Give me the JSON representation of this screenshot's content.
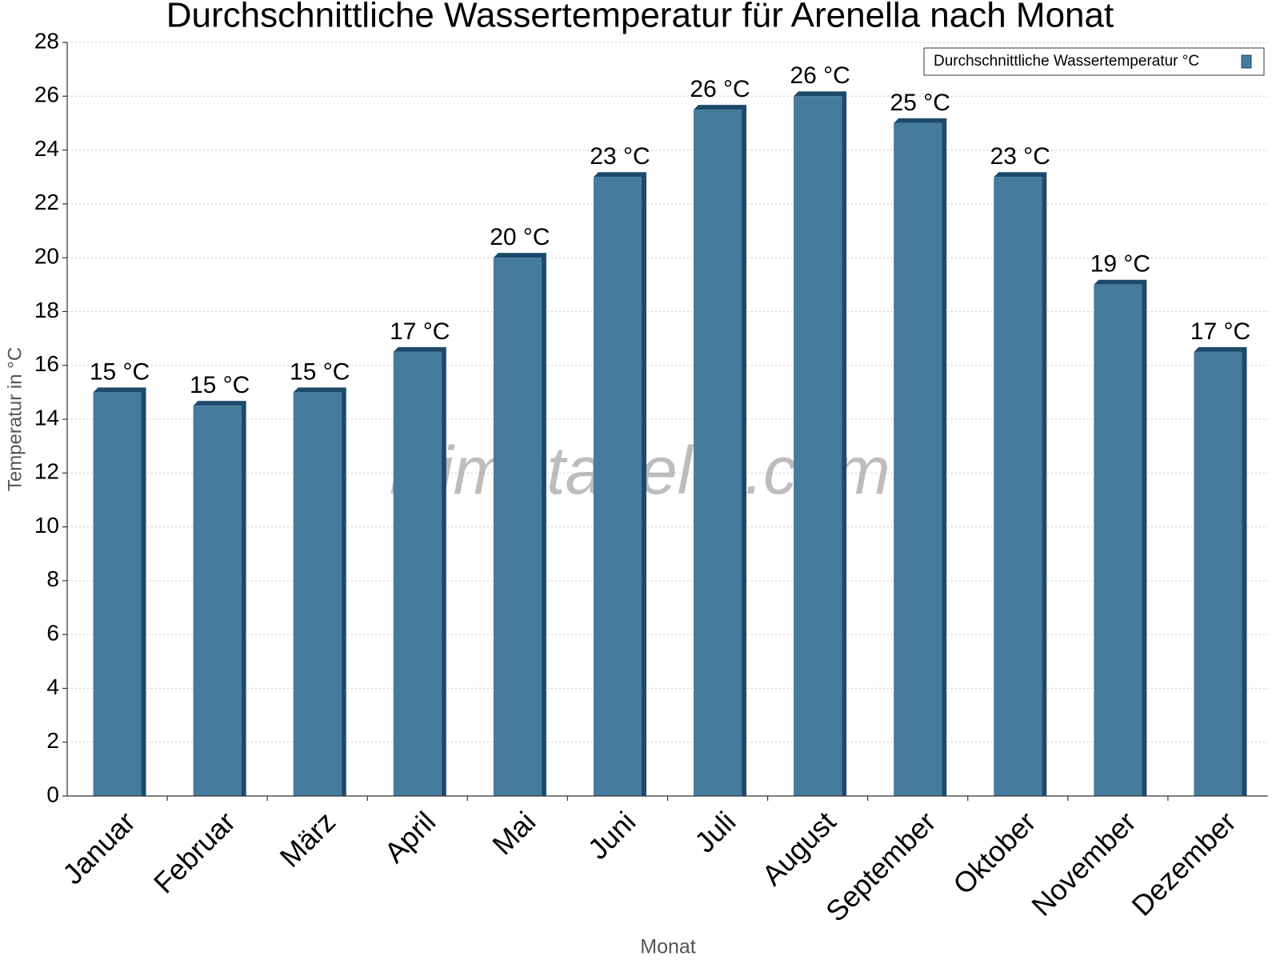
{
  "chart_data": {
    "type": "bar",
    "title": "Durchschnittliche Wassertemperatur für Arenella nach Monat",
    "watermark": "klimatabelle.com",
    "x_label": "Monat",
    "y_label": "Temperatur in °C",
    "categories": [
      "Januar",
      "Februar",
      "März",
      "April",
      "Mai",
      "Juni",
      "Juli",
      "August",
      "September",
      "Oktober",
      "November",
      "Dezember"
    ],
    "series": [
      {
        "name": "Durchschnittliche Wassertemperatur °C",
        "color": "#457b9d",
        "values": [
          15,
          14.5,
          15,
          16.5,
          20,
          23,
          25.5,
          26,
          25,
          23,
          19,
          16.5
        ],
        "value_labels": [
          "15 °C",
          "15 °C",
          "15 °C",
          "17 °C",
          "20 °C",
          "23 °C",
          "26 °C",
          "26 °C",
          "25 °C",
          "23 °C",
          "19 °C",
          "17 °C"
        ]
      }
    ],
    "ylim": [
      0,
      28
    ],
    "yticks": [
      0,
      2,
      4,
      6,
      8,
      10,
      12,
      14,
      16,
      18,
      20,
      22,
      24,
      26,
      28
    ],
    "grid": true,
    "legend": "top-right"
  }
}
